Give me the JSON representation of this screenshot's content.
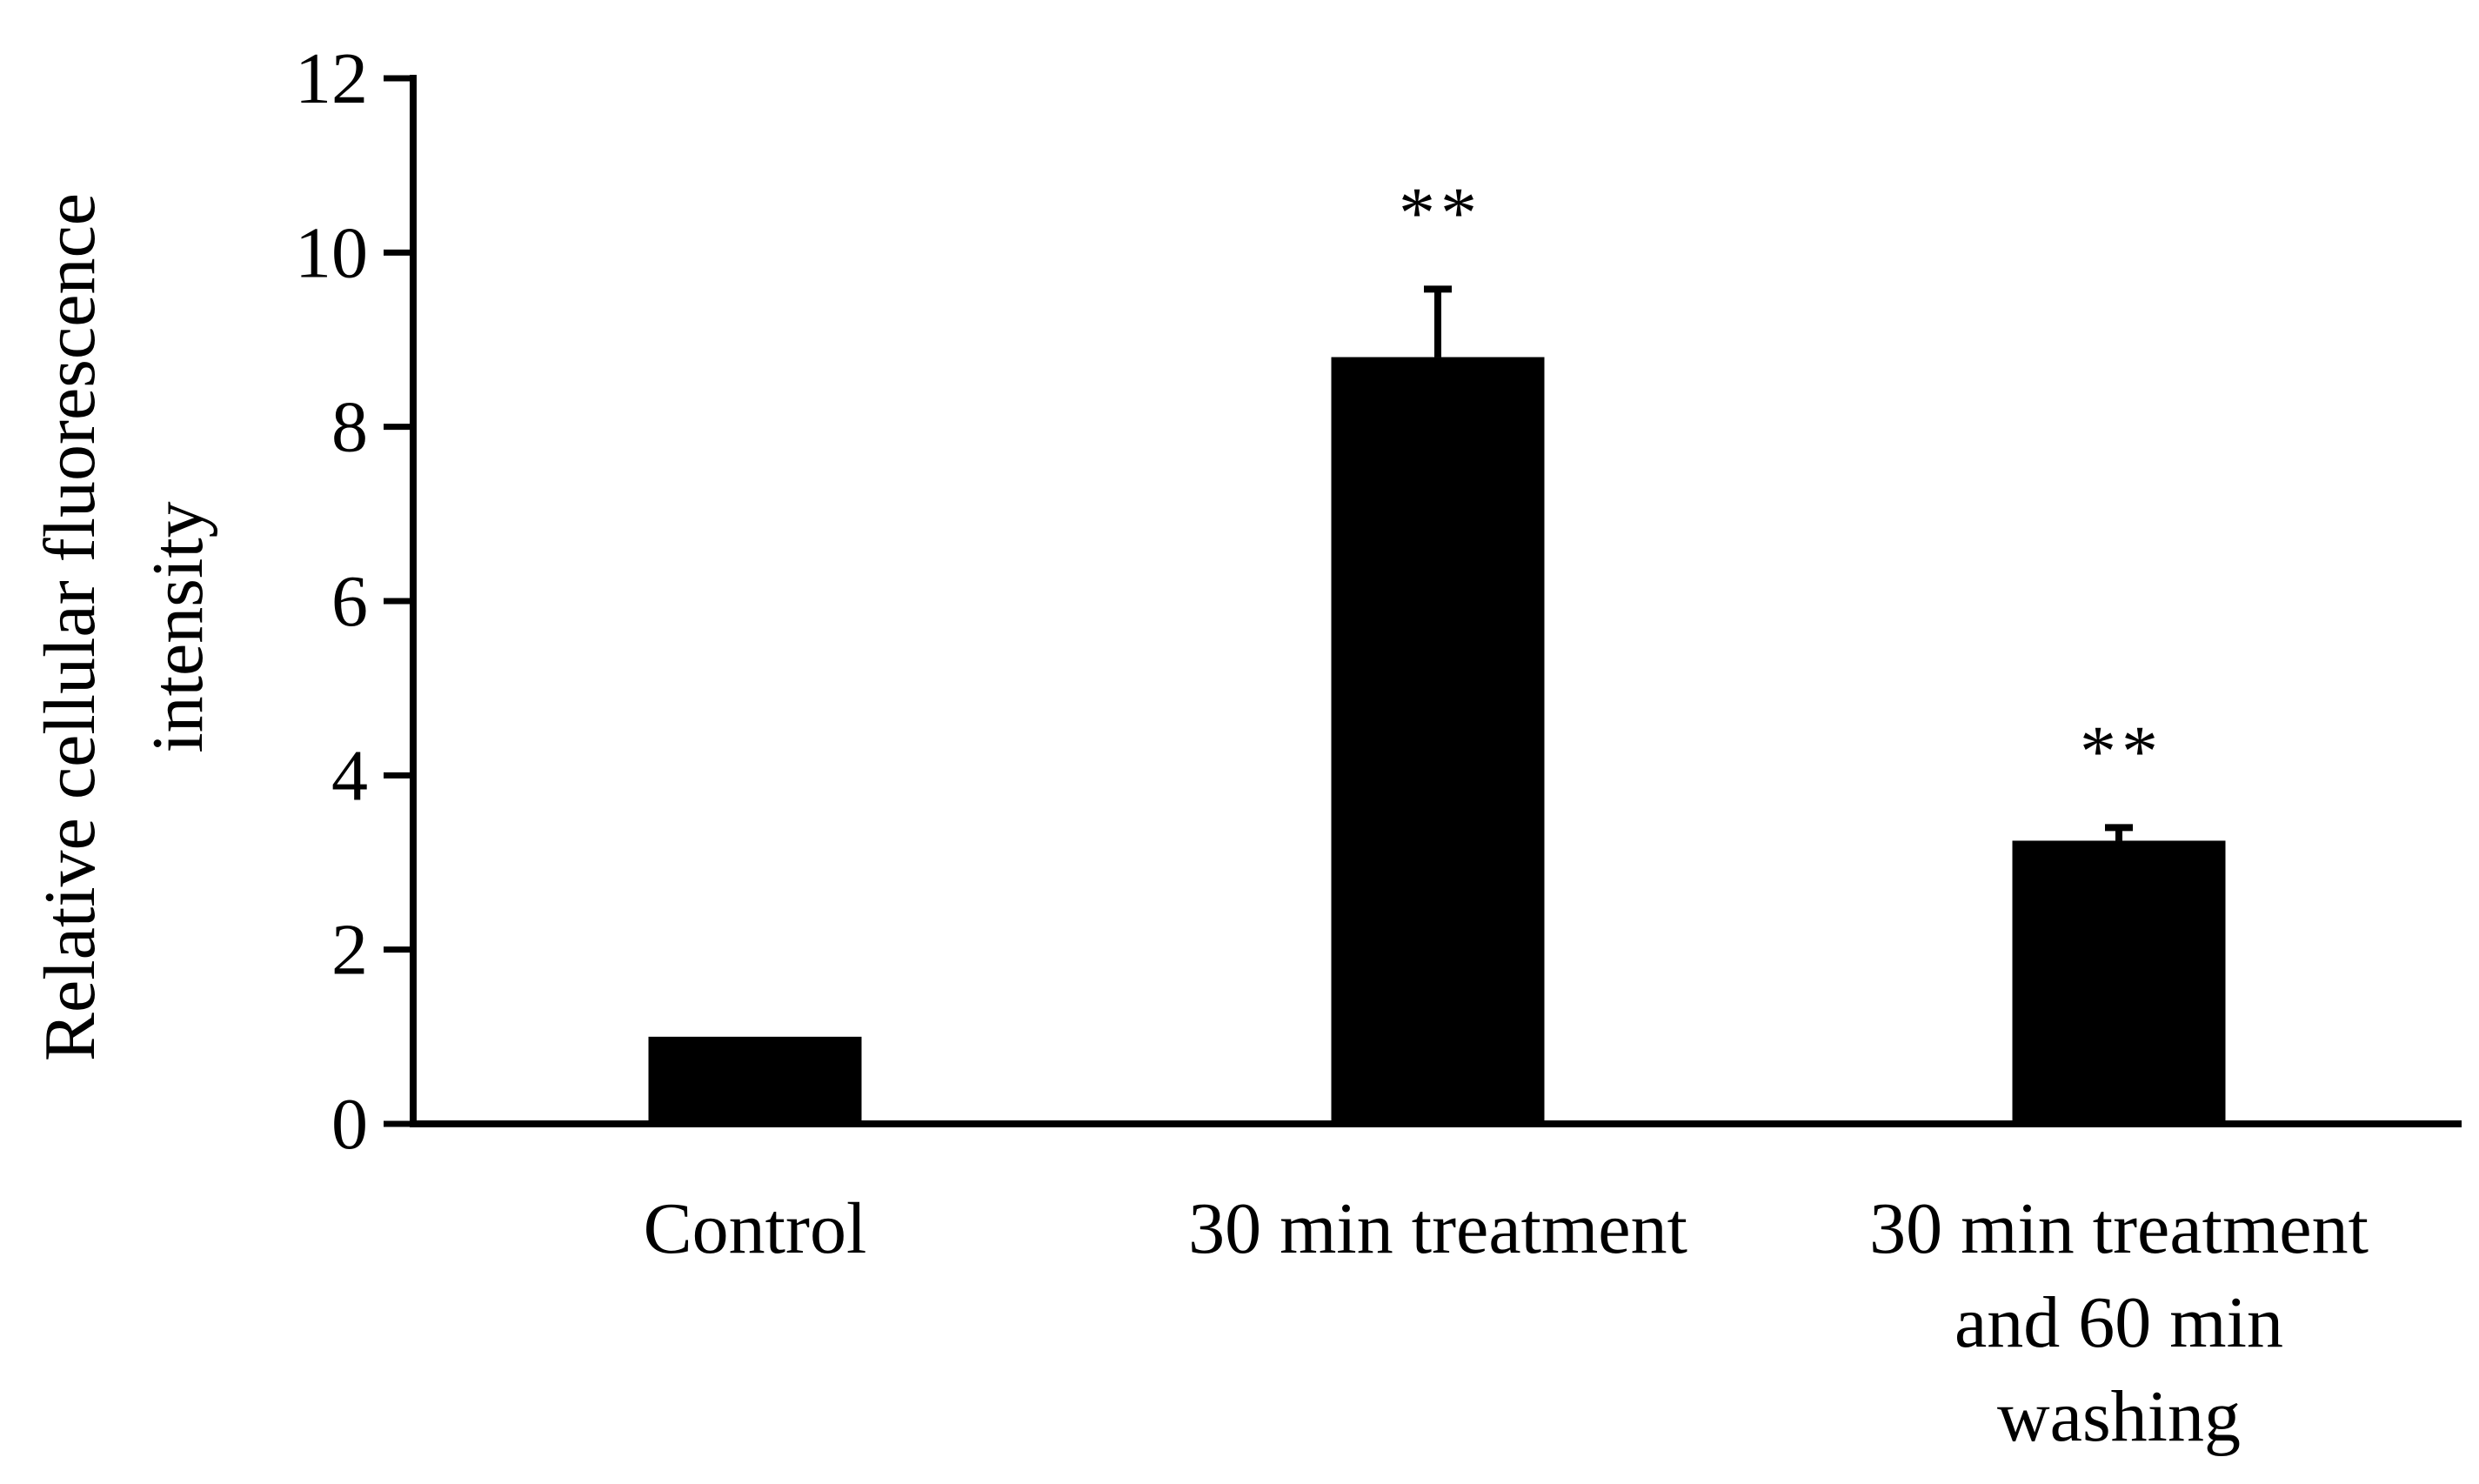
{
  "chart_data": {
    "type": "bar",
    "title": "",
    "xlabel": "",
    "ylabel": [
      "Relative cellular fluorescence",
      "intensity"
    ],
    "ylim": [
      0,
      12
    ],
    "yticks": [
      0,
      2,
      4,
      6,
      8,
      10,
      12
    ],
    "categories": [
      [
        "Control"
      ],
      [
        "30 min treatment"
      ],
      [
        "30 min treatment",
        "and 60 min",
        "washing"
      ]
    ],
    "values": [
      1.0,
      8.8,
      3.25
    ],
    "errors": [
      0,
      0.78,
      0.15
    ],
    "significance": [
      "",
      "**",
      "**"
    ],
    "bar_color": "#000000",
    "grid": false,
    "legend": "none"
  }
}
